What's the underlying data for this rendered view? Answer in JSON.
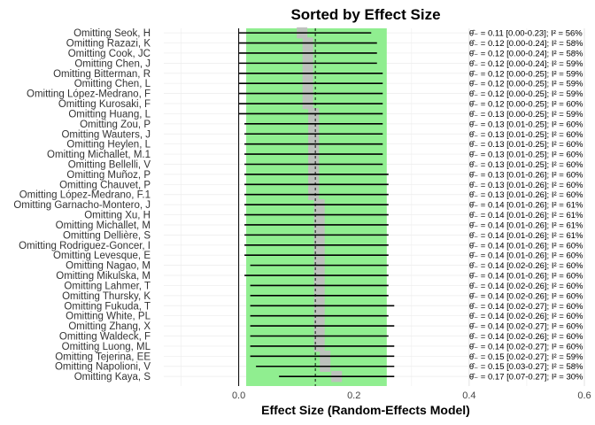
{
  "chart_data": {
    "type": "forest",
    "title": "Sorted by Effect Size",
    "xlabel": "Effect Size (Random-Effects Model)",
    "xlim": [
      -0.13,
      0.6
    ],
    "xticks": [
      0.0,
      0.2,
      0.4,
      0.6
    ],
    "xtick_labels": [
      "0.0",
      "0.2",
      "0.4",
      "0.6"
    ],
    "grid": true,
    "band": {
      "x0": 0.013,
      "x1": 0.257,
      "color": "#90ee90"
    },
    "vline_zero": 0.0,
    "vline_overall": 0.133,
    "colors": {
      "point": "#bfbfbf",
      "ci": "#000000",
      "band": "#90ee90"
    },
    "rows": [
      {
        "label": "Omitting Seok, H",
        "est": 0.11,
        "lo": 0.0,
        "hi": 0.23,
        "annot": "θ̂₋ = 0.11 [0.00-0.23]; I² = 56%"
      },
      {
        "label": "Omitting Razazi, K",
        "est": 0.12,
        "lo": 0.0,
        "hi": 0.24,
        "annot": "θ̂₋ = 0.12 [0.00-0.24]; I² = 58%"
      },
      {
        "label": "Omitting Cook, JC",
        "est": 0.12,
        "lo": 0.0,
        "hi": 0.24,
        "annot": "θ̂₋ = 0.12 [0.00-0.24]; I² = 58%"
      },
      {
        "label": "Omitting Chen, J",
        "est": 0.12,
        "lo": 0.0,
        "hi": 0.24,
        "annot": "θ̂₋ = 0.12 [0.00-0.24]; I² = 59%"
      },
      {
        "label": "Omitting Bitterman, R",
        "est": 0.12,
        "lo": 0.0,
        "hi": 0.25,
        "annot": "θ̂₋ = 0.12 [0.00-0.25]; I² = 59%"
      },
      {
        "label": "Omitting Chen, L",
        "est": 0.12,
        "lo": 0.0,
        "hi": 0.25,
        "annot": "θ̂₋ = 0.12 [0.00-0.25]; I² = 59%"
      },
      {
        "label": "Omitting López-Medrano, F",
        "est": 0.12,
        "lo": 0.0,
        "hi": 0.25,
        "annot": "θ̂₋ = 0.12 [0.00-0.25]; I² = 59%"
      },
      {
        "label": "Omitting Kurosaki, F",
        "est": 0.12,
        "lo": 0.0,
        "hi": 0.25,
        "annot": "θ̂₋ = 0.12 [0.00-0.25]; I² = 60%"
      },
      {
        "label": "Omitting Huang, L",
        "est": 0.13,
        "lo": 0.0,
        "hi": 0.25,
        "annot": "θ̂₋ = 0.13 [0.00-0.25]; I² = 59%"
      },
      {
        "label": "Omitting Zou, P",
        "est": 0.13,
        "lo": 0.01,
        "hi": 0.25,
        "annot": "θ̂₋ = 0.13 [0.01-0.25]; I² = 60%"
      },
      {
        "label": "Omitting Wauters, J",
        "est": 0.13,
        "lo": 0.01,
        "hi": 0.25,
        "annot": "θ̂₋ = 0.13 [0.01-0.25]; I² = 60%"
      },
      {
        "label": "Omitting Heylen, L",
        "est": 0.13,
        "lo": 0.01,
        "hi": 0.25,
        "annot": "θ̂₋ = 0.13 [0.01-0.25]; I² = 60%"
      },
      {
        "label": "Omitting Michallet, M.1",
        "est": 0.13,
        "lo": 0.01,
        "hi": 0.25,
        "annot": "θ̂₋ = 0.13 [0.01-0.25]; I² = 60%"
      },
      {
        "label": "Omitting Bellelli, V",
        "est": 0.13,
        "lo": 0.01,
        "hi": 0.25,
        "annot": "θ̂₋ = 0.13 [0.01-0.25]; I² = 60%"
      },
      {
        "label": "Omitting Muñoz, P",
        "est": 0.13,
        "lo": 0.01,
        "hi": 0.26,
        "annot": "θ̂₋ = 0.13 [0.01-0.26]; I² = 60%"
      },
      {
        "label": "Omitting Chauvet, P",
        "est": 0.13,
        "lo": 0.01,
        "hi": 0.26,
        "annot": "θ̂₋ = 0.13 [0.01-0.26]; I² = 60%"
      },
      {
        "label": "Omitting López-Medrano, F.1",
        "est": 0.13,
        "lo": 0.01,
        "hi": 0.26,
        "annot": "θ̂₋ = 0.13 [0.01-0.26]; I² = 60%"
      },
      {
        "label": "Omitting Garnacho-Montero, J",
        "est": 0.14,
        "lo": 0.01,
        "hi": 0.26,
        "annot": "θ̂₋ = 0.14 [0.01-0.26]; I² = 61%"
      },
      {
        "label": "Omitting Xu, H",
        "est": 0.14,
        "lo": 0.01,
        "hi": 0.26,
        "annot": "θ̂₋ = 0.14 [0.01-0.26]; I² = 61%"
      },
      {
        "label": "Omitting Michallet, M",
        "est": 0.14,
        "lo": 0.01,
        "hi": 0.26,
        "annot": "θ̂₋ = 0.14 [0.01-0.26]; I² = 61%"
      },
      {
        "label": "Omitting Dellière, S",
        "est": 0.14,
        "lo": 0.01,
        "hi": 0.26,
        "annot": "θ̂₋ = 0.14 [0.01-0.26]; I² = 61%"
      },
      {
        "label": "Omitting Rodriguez-Goncer, I",
        "est": 0.14,
        "lo": 0.01,
        "hi": 0.26,
        "annot": "θ̂₋ = 0.14 [0.01-0.26]; I² = 60%"
      },
      {
        "label": "Omitting Levesque, E",
        "est": 0.14,
        "lo": 0.01,
        "hi": 0.26,
        "annot": "θ̂₋ = 0.14 [0.01-0.26]; I² = 60%"
      },
      {
        "label": "Omitting Nagao, M",
        "est": 0.14,
        "lo": 0.02,
        "hi": 0.26,
        "annot": "θ̂₋ = 0.14 [0.02-0.26]; I² = 60%"
      },
      {
        "label": "Omitting Mikulska, M",
        "est": 0.14,
        "lo": 0.01,
        "hi": 0.26,
        "annot": "θ̂₋ = 0.14 [0.01-0.26]; I² = 60%"
      },
      {
        "label": "Omitting Lahmer, T",
        "est": 0.14,
        "lo": 0.02,
        "hi": 0.26,
        "annot": "θ̂₋ = 0.14 [0.02-0.26]; I² = 60%"
      },
      {
        "label": "Omitting Thursky, K",
        "est": 0.14,
        "lo": 0.02,
        "hi": 0.26,
        "annot": "θ̂₋ = 0.14 [0.02-0.26]; I² = 60%"
      },
      {
        "label": "Omitting Fukuda, T",
        "est": 0.14,
        "lo": 0.02,
        "hi": 0.27,
        "annot": "θ̂₋ = 0.14 [0.02-0.27]; I² = 60%"
      },
      {
        "label": "Omitting White, PL",
        "est": 0.14,
        "lo": 0.02,
        "hi": 0.26,
        "annot": "θ̂₋ = 0.14 [0.02-0.26]; I² = 60%"
      },
      {
        "label": "Omitting Zhang, X",
        "est": 0.14,
        "lo": 0.02,
        "hi": 0.27,
        "annot": "θ̂₋ = 0.14 [0.02-0.27]; I² = 60%"
      },
      {
        "label": "Omitting Waldeck, F",
        "est": 0.14,
        "lo": 0.02,
        "hi": 0.26,
        "annot": "θ̂₋ = 0.14 [0.02-0.26]; I² = 60%"
      },
      {
        "label": "Omitting Luong, ML",
        "est": 0.14,
        "lo": 0.02,
        "hi": 0.27,
        "annot": "θ̂₋ = 0.14 [0.02-0.27]; I² = 60%"
      },
      {
        "label": "Omitting Tejerina, EE",
        "est": 0.15,
        "lo": 0.02,
        "hi": 0.27,
        "annot": "θ̂₋ = 0.15 [0.02-0.27]; I² = 59%"
      },
      {
        "label": "Omitting Napolioni, V",
        "est": 0.15,
        "lo": 0.03,
        "hi": 0.27,
        "annot": "θ̂₋ = 0.15 [0.03-0.27]; I² = 58%"
      },
      {
        "label": "Omitting Kaya, S",
        "est": 0.17,
        "lo": 0.07,
        "hi": 0.27,
        "annot": "θ̂₋ = 0.17 [0.07-0.27]; I² = 30%"
      }
    ]
  }
}
